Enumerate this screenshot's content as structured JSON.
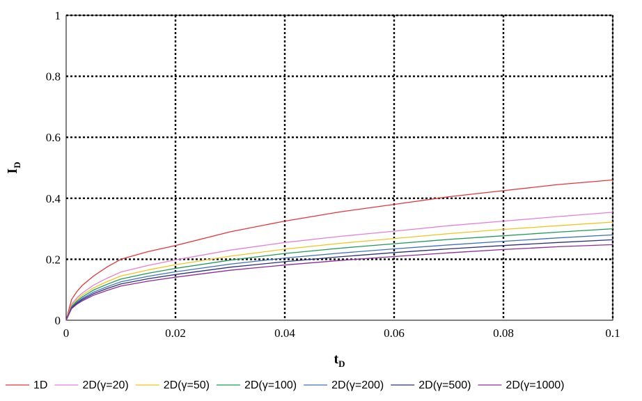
{
  "chart_data": {
    "type": "line",
    "xlabel": "t",
    "xlabel_sub": "D",
    "ylabel": "I",
    "ylabel_sub": "D",
    "xlim": [
      0,
      0.1
    ],
    "ylim": [
      0,
      1
    ],
    "xticks": [
      0,
      0.02,
      0.04,
      0.06,
      0.08,
      0.1
    ],
    "xtick_labels": [
      "0",
      "0.02",
      "0.04",
      "0.06",
      "0.08",
      "0.1"
    ],
    "yticks": [
      0,
      0.2,
      0.4,
      0.6,
      0.8,
      1
    ],
    "ytick_labels": [
      "0",
      "0.2",
      "0.4",
      "0.6",
      "0.8",
      "1"
    ],
    "grid": true,
    "legend_position": "bottom",
    "x": [
      0,
      0.001,
      0.002,
      0.003,
      0.005,
      0.0075,
      0.01,
      0.015,
      0.02,
      0.03,
      0.04,
      0.05,
      0.06,
      0.07,
      0.08,
      0.09,
      0.1
    ],
    "series": [
      {
        "name": "1D",
        "color": "#e8333b",
        "values": [
          0,
          0.068,
          0.095,
          0.115,
          0.145,
          0.175,
          0.2,
          0.225,
          0.245,
          0.29,
          0.325,
          0.355,
          0.38,
          0.405,
          0.425,
          0.445,
          0.46
        ]
      },
      {
        "name": "2D(γ=20)",
        "color": "#e77fd5",
        "values": [
          0,
          0.052,
          0.074,
          0.09,
          0.115,
          0.138,
          0.158,
          0.18,
          0.198,
          0.23,
          0.255,
          0.275,
          0.292,
          0.31,
          0.325,
          0.34,
          0.354
        ]
      },
      {
        "name": "2D(γ=50)",
        "color": "#f2c51c",
        "values": [
          0,
          0.048,
          0.068,
          0.083,
          0.106,
          0.127,
          0.145,
          0.165,
          0.182,
          0.21,
          0.233,
          0.252,
          0.268,
          0.284,
          0.298,
          0.31,
          0.322
        ]
      },
      {
        "name": "2D(γ=100)",
        "color": "#1e9a55",
        "values": [
          0,
          0.045,
          0.063,
          0.077,
          0.099,
          0.118,
          0.135,
          0.154,
          0.17,
          0.197,
          0.219,
          0.236,
          0.251,
          0.265,
          0.277,
          0.289,
          0.3
        ]
      },
      {
        "name": "2D(γ=200)",
        "color": "#3d6fc0",
        "values": [
          0,
          0.042,
          0.059,
          0.072,
          0.092,
          0.11,
          0.126,
          0.144,
          0.159,
          0.184,
          0.204,
          0.22,
          0.234,
          0.247,
          0.259,
          0.27,
          0.28
        ]
      },
      {
        "name": "2D(γ=500)",
        "color": "#2c2f80",
        "values": [
          0,
          0.04,
          0.056,
          0.068,
          0.087,
          0.104,
          0.119,
          0.136,
          0.15,
          0.174,
          0.192,
          0.208,
          0.222,
          0.234,
          0.245,
          0.255,
          0.264
        ]
      },
      {
        "name": "2D(γ=1000)",
        "color": "#8e2a9c",
        "values": [
          0,
          0.038,
          0.053,
          0.064,
          0.082,
          0.098,
          0.112,
          0.128,
          0.141,
          0.164,
          0.181,
          0.196,
          0.209,
          0.221,
          0.232,
          0.241,
          0.248
        ]
      }
    ]
  }
}
